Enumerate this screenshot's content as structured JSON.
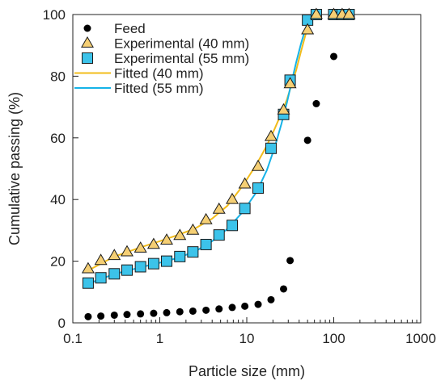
{
  "chart_data": {
    "type": "scatter",
    "title": "",
    "xlabel": "Particle size (mm)",
    "ylabel": "Cumulative passing (%)",
    "x_scale": "log",
    "xlim": [
      0.1,
      1000
    ],
    "ylim": [
      0,
      100
    ],
    "x_ticks": [
      0.1,
      1,
      10,
      100,
      1000
    ],
    "x_tick_labels": [
      "0.1",
      "1",
      "10",
      "100",
      "1000"
    ],
    "y_ticks": [
      0,
      20,
      40,
      60,
      80,
      100
    ],
    "y_tick_labels": [
      "0",
      "20",
      "40",
      "60",
      "80",
      "100"
    ],
    "grid": false,
    "legend_position": "top-left",
    "colors": {
      "feed": "#000000",
      "exp40": "#f5cf74",
      "exp55": "#3cc3ea",
      "fit40": "#f2bc1b",
      "fit55": "#16b3e8",
      "marker_edge": "#1a1a1a"
    },
    "series": [
      {
        "name": "Feed",
        "kind": "markers",
        "marker": "circle",
        "x": [
          0.15,
          0.21,
          0.3,
          0.42,
          0.6,
          0.85,
          1.2,
          1.7,
          2.4,
          3.4,
          4.8,
          6.8,
          9.5,
          13.5,
          19,
          26.5,
          31.5,
          50,
          63,
          100,
          125,
          150
        ],
        "y": [
          2.0,
          2.2,
          2.5,
          2.7,
          2.9,
          3.1,
          3.3,
          3.6,
          3.8,
          4.1,
          4.5,
          5.0,
          5.4,
          6.0,
          7.5,
          11.0,
          20.2,
          59.2,
          71.1,
          86.4,
          100,
          100
        ]
      },
      {
        "name": "Experimental (40 mm)",
        "kind": "markers",
        "marker": "triangle",
        "x": [
          0.15,
          0.21,
          0.3,
          0.42,
          0.6,
          0.85,
          1.2,
          1.7,
          2.4,
          3.4,
          4.8,
          6.8,
          9.5,
          13.5,
          19,
          26.5,
          31.5,
          50,
          63,
          100,
          125,
          150
        ],
        "y": [
          17.5,
          20.2,
          21.8,
          23.0,
          24.2,
          25.4,
          26.8,
          28.3,
          30.0,
          33.4,
          36.8,
          40.0,
          45.0,
          50.7,
          60.4,
          69.0,
          77.5,
          95.0,
          100,
          100,
          100,
          100
        ]
      },
      {
        "name": "Experimental (55 mm)",
        "kind": "markers",
        "marker": "square",
        "x": [
          0.15,
          0.21,
          0.3,
          0.42,
          0.6,
          0.85,
          1.2,
          1.7,
          2.4,
          3.4,
          4.8,
          6.8,
          9.5,
          13.5,
          19,
          26.5,
          31.5,
          50,
          63,
          100,
          125,
          150
        ],
        "y": [
          12.9,
          14.6,
          15.9,
          17.1,
          18.2,
          19.2,
          20.0,
          21.5,
          23.0,
          25.4,
          28.5,
          31.6,
          37.1,
          43.7,
          56.6,
          67.6,
          78.7,
          98.2,
          100,
          100,
          100,
          100
        ]
      },
      {
        "name": "Fitted (40 mm)",
        "kind": "line",
        "x": [
          0.15,
          0.3,
          0.6,
          1,
          1.5,
          2.5,
          4,
          6,
          9,
          13,
          17,
          21,
          25,
          29,
          33,
          37,
          42,
          48,
          55,
          60
        ],
        "y": [
          17.0,
          21.5,
          24.5,
          26.5,
          28.2,
          30.5,
          33.8,
          38.0,
          44.5,
          51.5,
          57.5,
          63.0,
          68.0,
          72.5,
          77.5,
          82.0,
          88.0,
          94.0,
          99.0,
          100
        ]
      },
      {
        "name": "Fitted (55 mm)",
        "kind": "line",
        "x": [
          0.15,
          0.3,
          0.6,
          1,
          1.5,
          2.5,
          4,
          6,
          9,
          13,
          17,
          21,
          25,
          29,
          33,
          37,
          42,
          48,
          55,
          60
        ],
        "y": [
          12.7,
          15.8,
          18.0,
          19.5,
          20.8,
          23.0,
          26.5,
          30.5,
          36.0,
          42.5,
          49.5,
          57.0,
          64.5,
          71.5,
          78.5,
          84.5,
          90.5,
          96.0,
          99.5,
          100
        ]
      }
    ]
  }
}
